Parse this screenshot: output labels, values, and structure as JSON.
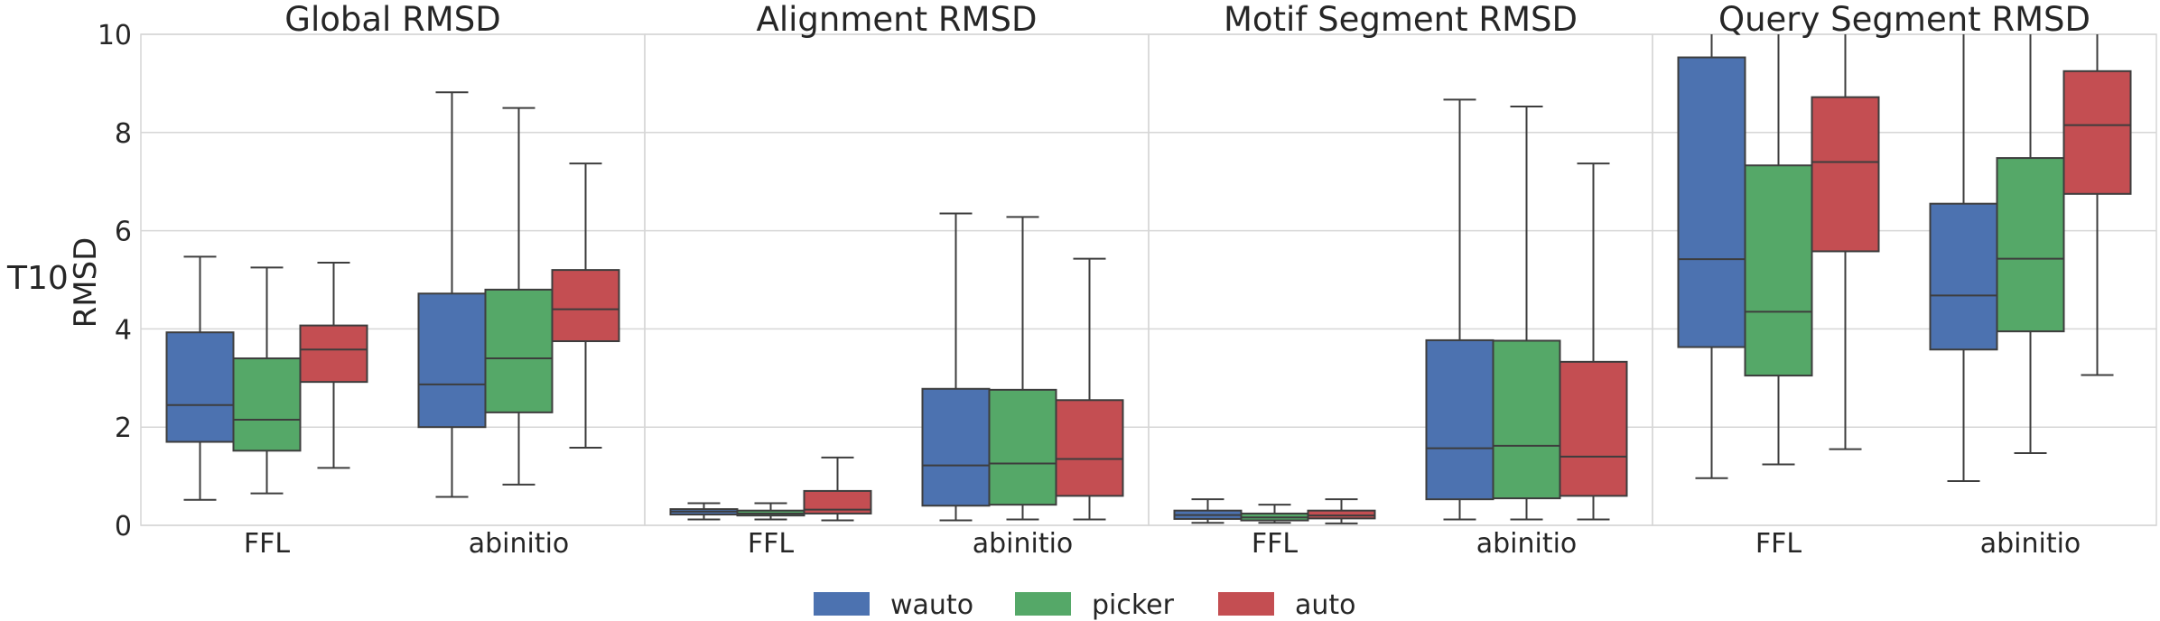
{
  "chart_data": {
    "type": "box",
    "row_label": "T10",
    "ylabel": "RMSD",
    "ylim": [
      0,
      10
    ],
    "yticks": [
      0,
      2,
      4,
      6,
      8,
      10
    ],
    "categories": [
      "FFL",
      "abinitio"
    ],
    "series": [
      {
        "name": "wauto",
        "color": "#4C72B0"
      },
      {
        "name": "picker",
        "color": "#55A868"
      },
      {
        "name": "auto",
        "color": "#C44E52"
      }
    ],
    "legend_position": "bottom-center",
    "grid": true,
    "panels": [
      {
        "title": "Global RMSD",
        "boxes": {
          "FFL": [
            {
              "whislo": 0.52,
              "q1": 1.7,
              "med": 2.45,
              "q3": 3.93,
              "whishi": 5.47
            },
            {
              "whislo": 0.65,
              "q1": 1.52,
              "med": 2.15,
              "q3": 3.4,
              "whishi": 5.25
            },
            {
              "whislo": 1.17,
              "q1": 2.92,
              "med": 3.58,
              "q3": 4.07,
              "whishi": 5.35
            }
          ],
          "abinitio": [
            {
              "whislo": 0.58,
              "q1": 2.0,
              "med": 2.87,
              "q3": 4.72,
              "whishi": 8.82
            },
            {
              "whislo": 0.83,
              "q1": 2.3,
              "med": 3.4,
              "q3": 4.8,
              "whishi": 8.5
            },
            {
              "whislo": 1.58,
              "q1": 3.75,
              "med": 4.4,
              "q3": 5.2,
              "whishi": 7.37
            }
          ]
        }
      },
      {
        "title": "Alignment RMSD",
        "boxes": {
          "FFL": [
            {
              "whislo": 0.12,
              "q1": 0.22,
              "med": 0.28,
              "q3": 0.33,
              "whishi": 0.45
            },
            {
              "whislo": 0.12,
              "q1": 0.2,
              "med": 0.24,
              "q3": 0.3,
              "whishi": 0.45
            },
            {
              "whislo": 0.1,
              "q1": 0.24,
              "med": 0.32,
              "q3": 0.7,
              "whishi": 1.38
            }
          ],
          "abinitio": [
            {
              "whislo": 0.1,
              "q1": 0.4,
              "med": 1.22,
              "q3": 2.78,
              "whishi": 6.35
            },
            {
              "whislo": 0.12,
              "q1": 0.42,
              "med": 1.26,
              "q3": 2.76,
              "whishi": 6.28
            },
            {
              "whislo": 0.12,
              "q1": 0.6,
              "med": 1.35,
              "q3": 2.55,
              "whishi": 5.43
            }
          ]
        }
      },
      {
        "title": "Motif Segment RMSD",
        "boxes": {
          "FFL": [
            {
              "whislo": 0.05,
              "q1": 0.13,
              "med": 0.21,
              "q3": 0.3,
              "whishi": 0.53
            },
            {
              "whislo": 0.05,
              "q1": 0.1,
              "med": 0.16,
              "q3": 0.24,
              "whishi": 0.42
            },
            {
              "whislo": 0.04,
              "q1": 0.14,
              "med": 0.2,
              "q3": 0.3,
              "whishi": 0.53
            }
          ],
          "abinitio": [
            {
              "whislo": 0.12,
              "q1": 0.53,
              "med": 1.57,
              "q3": 3.77,
              "whishi": 8.67
            },
            {
              "whislo": 0.12,
              "q1": 0.55,
              "med": 1.62,
              "q3": 3.76,
              "whishi": 8.53
            },
            {
              "whislo": 0.12,
              "q1": 0.6,
              "med": 1.4,
              "q3": 3.33,
              "whishi": 7.37
            }
          ]
        }
      },
      {
        "title": "Query Segment RMSD",
        "boxes": {
          "FFL": [
            {
              "whislo": 0.96,
              "q1": 3.63,
              "med": 5.42,
              "q3": 9.53,
              "whishi": 10.2
            },
            {
              "whislo": 1.24,
              "q1": 3.05,
              "med": 4.35,
              "q3": 7.33,
              "whishi": 10.2
            },
            {
              "whislo": 1.55,
              "q1": 5.58,
              "med": 7.4,
              "q3": 8.72,
              "whishi": 10.2
            }
          ],
          "abinitio": [
            {
              "whislo": 0.9,
              "q1": 3.58,
              "med": 4.68,
              "q3": 6.55,
              "whishi": 10.2
            },
            {
              "whislo": 1.47,
              "q1": 3.95,
              "med": 5.43,
              "q3": 7.48,
              "whishi": 10.2
            },
            {
              "whislo": 3.06,
              "q1": 6.75,
              "med": 8.15,
              "q3": 9.25,
              "whishi": 10.2
            }
          ]
        }
      }
    ]
  }
}
